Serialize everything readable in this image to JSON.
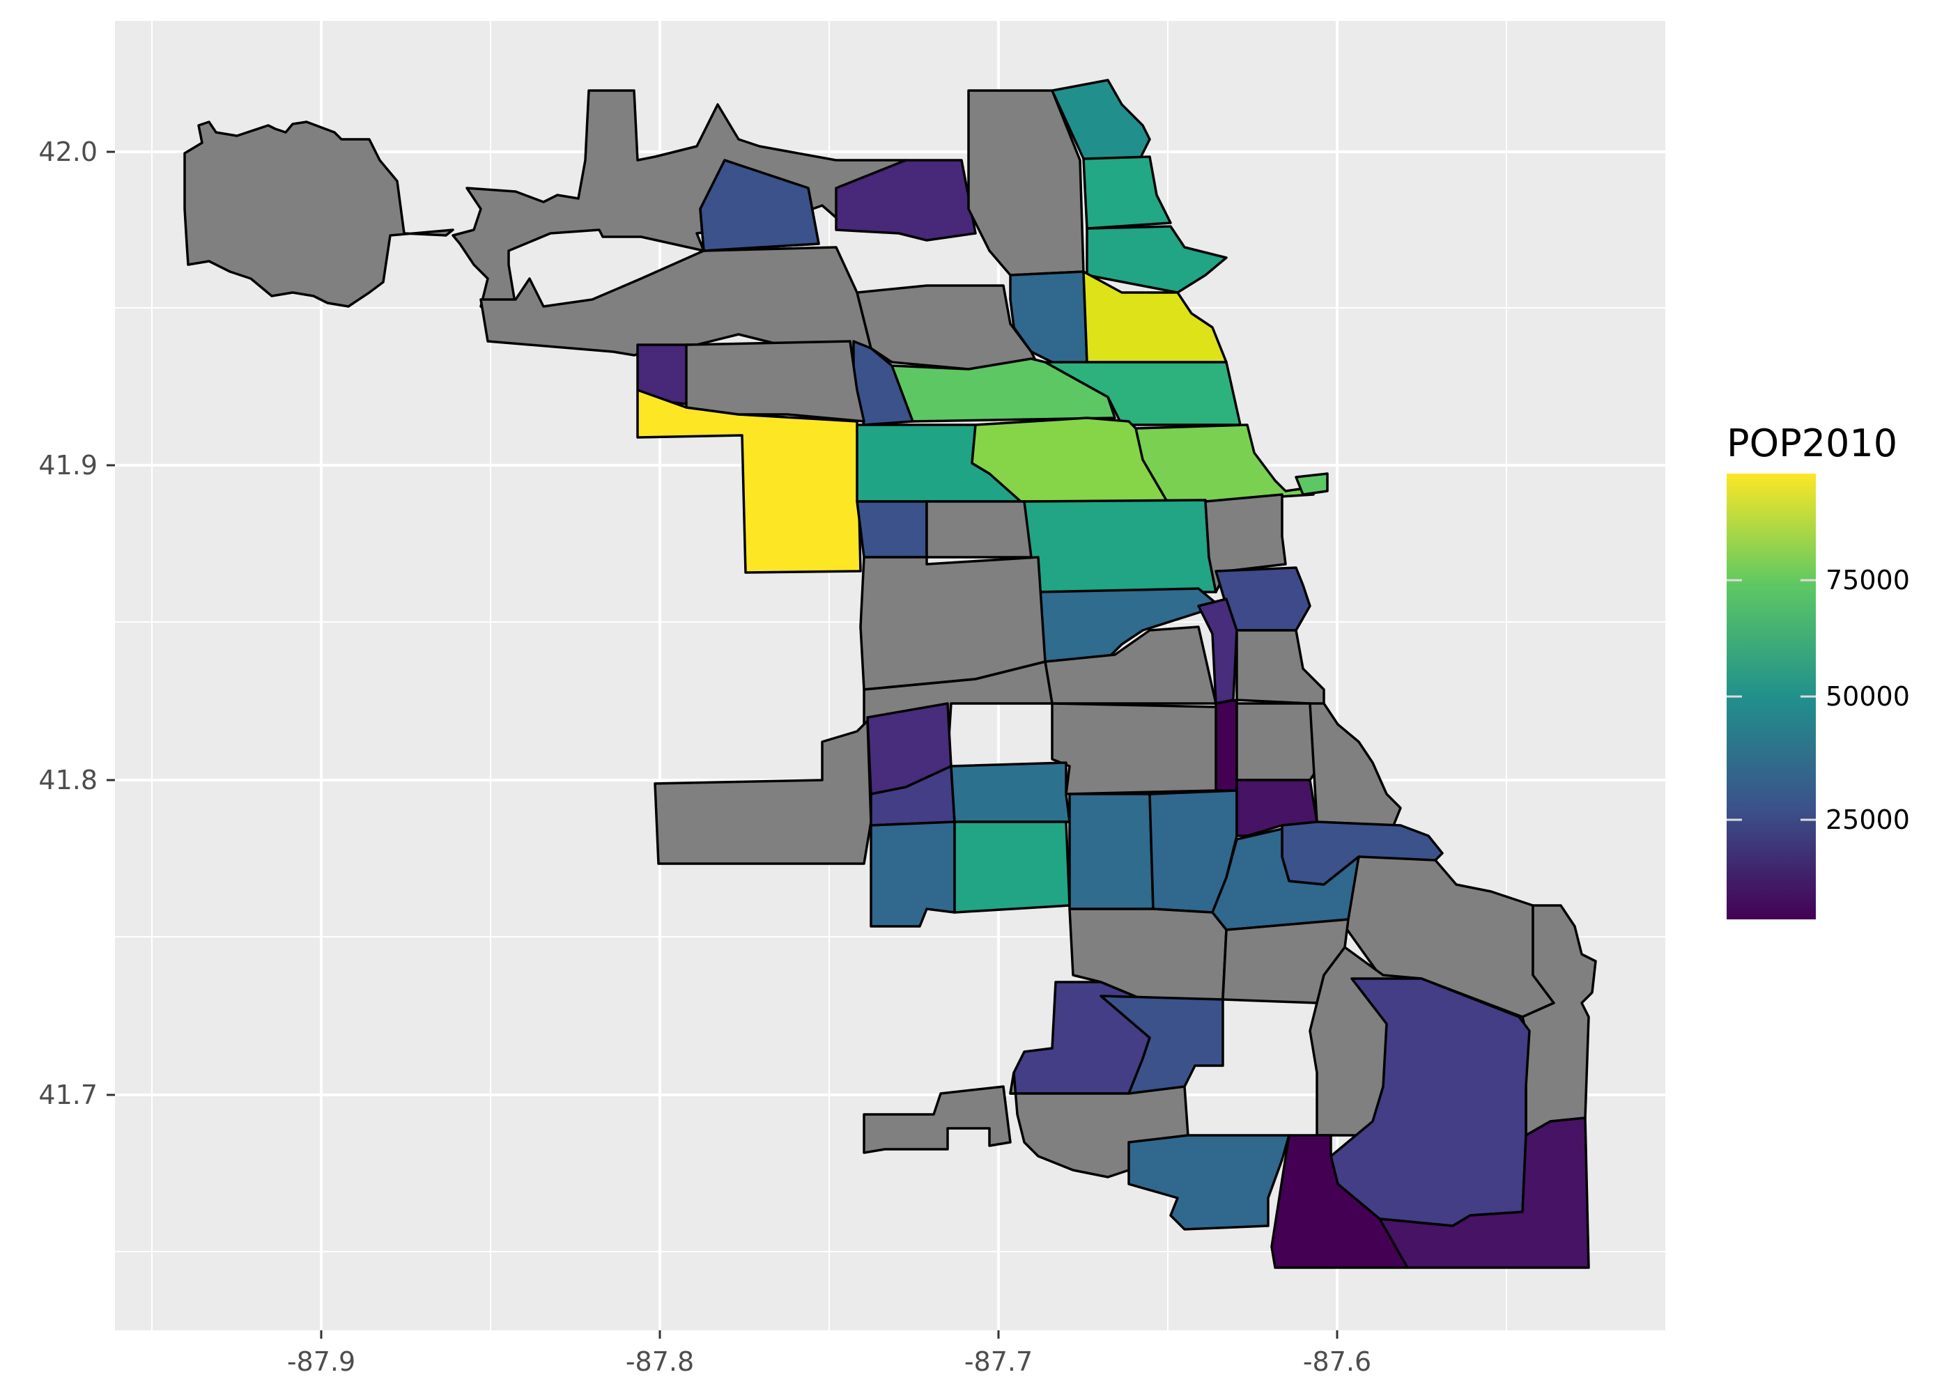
{
  "map": {
    "fill_na_color": "#808080",
    "panel_background": "#ebebeb",
    "grid_color": "#ffffff",
    "x_axis": {
      "ticks": [
        "-87.9",
        "-87.8",
        "-87.7",
        "-87.6"
      ],
      "range": [
        -87.95,
        -87.52
      ]
    },
    "y_axis": {
      "ticks": [
        "41.7",
        "41.8",
        "41.9",
        "42.0"
      ],
      "range": [
        41.64,
        42.02
      ]
    },
    "legend": {
      "title": "POP2010",
      "labels": [
        "25000",
        "50000",
        "75000"
      ],
      "colors": [
        "#440154",
        "#3b528b",
        "#21908c",
        "#5dc863",
        "#fde725"
      ]
    }
  },
  "chart_data": {
    "type": "choropleth",
    "variable": "POP2010",
    "scale": "viridis",
    "scale_range": [
      2876,
      98514
    ],
    "missing_areas": "gray"
  }
}
